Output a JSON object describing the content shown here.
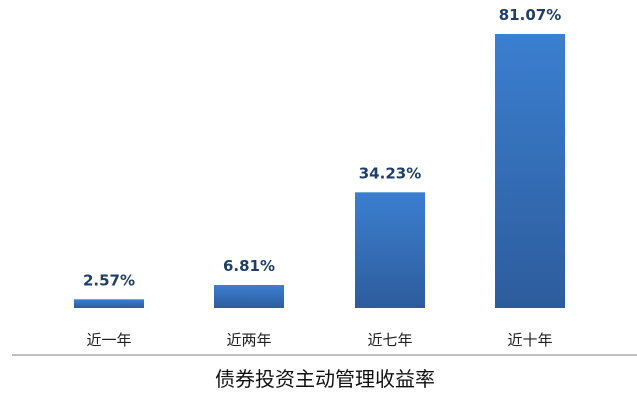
{
  "chart_data": {
    "type": "bar",
    "title": "债券投资主动管理收益率",
    "categories": [
      "近一年",
      "近两年",
      "近七年",
      "近十年"
    ],
    "values": [
      2.57,
      6.81,
      34.23,
      81.07
    ],
    "value_labels": [
      "2.57%",
      "6.81%",
      "34.23%",
      "81.07%"
    ],
    "unit": "%",
    "xlabel": "",
    "ylabel": "",
    "ylim": [
      0,
      81.07
    ],
    "grid": false,
    "legend": "none",
    "bar_color_top": "#3b7fd0",
    "bar_color_bottom": "#2d5c9c",
    "label_color": "#1f3f66"
  }
}
